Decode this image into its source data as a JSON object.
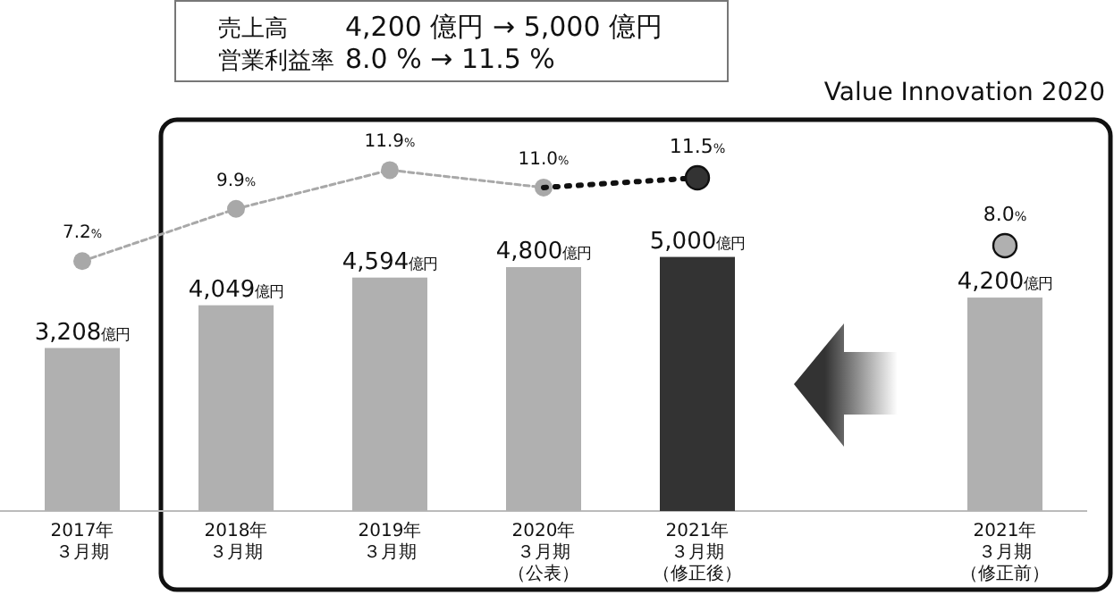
{
  "chart_data": {
    "type": "bar",
    "categories": [
      "2017年３月期",
      "2018年３月期",
      "2019年３月期",
      "2020年３月期（公表）",
      "2021年３月期（修正後）",
      null,
      "2021年３月期（修正前）"
    ],
    "tick_labels": "x",
    "ylim": [
      0,
      7700
    ],
    "y2lim": [
      -5.7,
      14.5
    ],
    "series": [
      {
        "colors": [
          "#b0b0b0",
          "#b0b0b0",
          "#b0b0b0",
          "#b0b0b0",
          "#333333",
          null,
          "#b0b0b0"
        ],
        "values": [
          3208,
          4049,
          4594,
          4800,
          5000,
          null,
          4200
        ],
        "value_labels": [
          "3,208億円",
          "4,049億円",
          "4,594億円",
          "4,800億円",
          "5,000億円",
          null,
          "4,200億円"
        ]
      },
      {
        "type": "line",
        "axis": "y2",
        "color": "#a8a8a8",
        "line_style": "dashed",
        "marker": "circle",
        "values": [
          7.2,
          9.9,
          11.9,
          11.0,
          null,
          null,
          null
        ],
        "value_labels": [
          "7.2%",
          "9.9%",
          "11.9%",
          "11.0%",
          null,
          null,
          null
        ]
      },
      {
        "type": "line",
        "axis": "y2",
        "color": "#111111",
        "line_style": "dotted",
        "marker": "none",
        "values": [
          null,
          null,
          null,
          11.0,
          11.5,
          null,
          null
        ]
      },
      {
        "type": "scatter",
        "axis": "y2",
        "marker": "circle",
        "colors": [
          null,
          null,
          null,
          null,
          "#333333",
          null,
          "#b0b0b0"
        ],
        "values": [
          null,
          null,
          null,
          null,
          11.5,
          null,
          8.0
        ],
        "value_labels": [
          null,
          null,
          null,
          null,
          "11.5%",
          null,
          "8.0%"
        ]
      }
    ],
    "annotations": [
      "売上高",
      "4,200 億円 → 5,000 億円",
      "営業利益率",
      "8.0 % → 11.5 %",
      "Value Innovation 2020"
    ]
  }
}
